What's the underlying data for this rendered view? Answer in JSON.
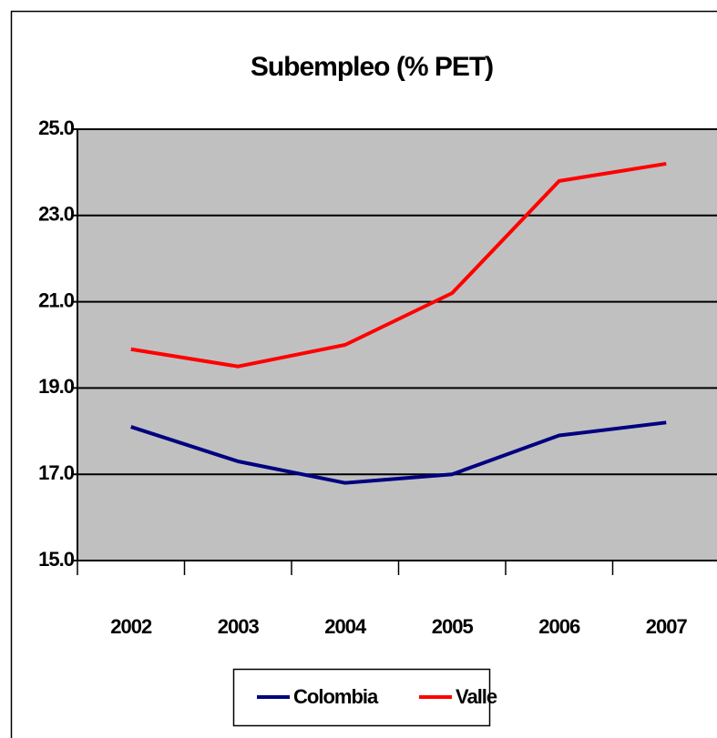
{
  "chart_data": {
    "type": "line",
    "title": "Subempleo (% PET)",
    "categories": [
      "2002",
      "2003",
      "2004",
      "2005",
      "2006",
      "2007"
    ],
    "series": [
      {
        "name": "Colombia",
        "color": "#000080",
        "values": [
          18.1,
          17.3,
          16.8,
          17.0,
          17.9,
          18.2
        ]
      },
      {
        "name": "Valle",
        "color": "#ff0000",
        "values": [
          19.9,
          19.5,
          20.0,
          21.2,
          23.8,
          24.2
        ]
      }
    ],
    "ylim": [
      15,
      25
    ],
    "yticks": [
      {
        "value": 15,
        "label": "15.0"
      },
      {
        "value": 17,
        "label": "17.0"
      },
      {
        "value": 19,
        "label": "19.0"
      },
      {
        "value": 21,
        "label": "21.0"
      },
      {
        "value": 23,
        "label": "23.0"
      },
      {
        "value": 25,
        "label": "25.0"
      }
    ],
    "grid": true,
    "legend": "bottom"
  }
}
